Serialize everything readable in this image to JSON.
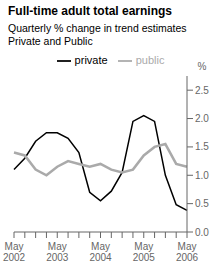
{
  "chart_data": {
    "type": "line",
    "title": "Full-time adult total earnings",
    "subtitle": [
      "Quarterly % change in trend estimates",
      "Private and Public"
    ],
    "ylabel": "%",
    "categories": [
      "May\n2002",
      null,
      null,
      null,
      "May\n2003",
      null,
      null,
      null,
      "May\n2004",
      null,
      null,
      null,
      "May\n2005",
      null,
      null,
      null,
      "May\n2006"
    ],
    "series": [
      {
        "name": "private",
        "color": "#000000",
        "values": [
          1.1,
          1.3,
          1.6,
          1.75,
          1.75,
          1.65,
          1.4,
          0.7,
          0.55,
          0.72,
          1.05,
          1.95,
          2.05,
          1.95,
          1.0,
          0.48,
          0.38
        ]
      },
      {
        "name": "public",
        "color": "#aaaaaa",
        "values": [
          1.4,
          1.35,
          1.1,
          1.0,
          1.15,
          1.25,
          1.2,
          1.15,
          1.2,
          1.1,
          1.05,
          1.1,
          1.35,
          1.5,
          1.55,
          1.2,
          1.15
        ]
      }
    ],
    "ylim": [
      0,
      2.75
    ],
    "yticks": [
      {
        "value": 0,
        "label": "0.0"
      },
      {
        "value": 0.5,
        "label": "0.5"
      },
      {
        "value": 1.0,
        "label": "1.0"
      },
      {
        "value": 1.5,
        "label": "1.5"
      },
      {
        "value": 2.0,
        "label": "2.0"
      },
      {
        "value": 2.5,
        "label": "2.5"
      }
    ],
    "grid": false,
    "legend": "top"
  }
}
